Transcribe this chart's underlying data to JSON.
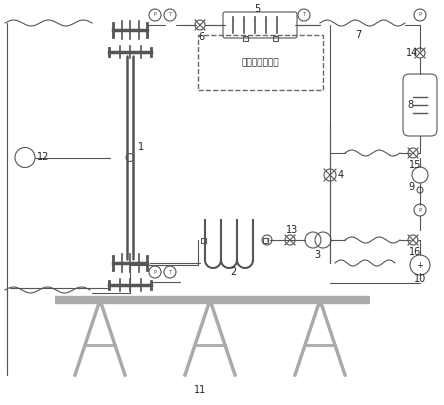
{
  "title": "",
  "bg_color": "#ffffff",
  "line_color": "#555555",
  "label_color": "#222222",
  "component_color": "#888888",
  "label_fontsize": 7,
  "subtitle": "11",
  "components": {
    "test_section_label": "1",
    "heater_label": "2",
    "pump_label": "3",
    "valve4_label": "4",
    "heat_exchanger_label": "5",
    "valve6_label": "6",
    "pipe7_label": "7",
    "tank_label": "8",
    "flowmeter9_label": "9",
    "motor10_label": "10",
    "platform_label": "11",
    "gauge12_label": "12",
    "valve13_label": "13",
    "valve14_label": "14",
    "valve15_label": "15",
    "valve16_label": "16",
    "secondary_label": "二次偶冷凝系统"
  }
}
